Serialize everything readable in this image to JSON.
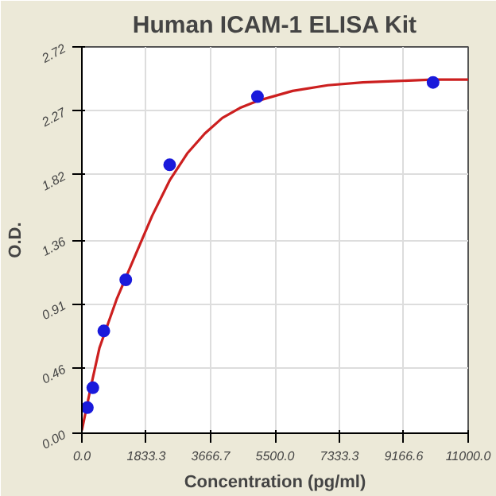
{
  "chart_data": {
    "type": "scatter",
    "title": "Human ICAM-1 ELISA Kit",
    "xlabel": "Concentration (pg/ml)",
    "ylabel": "O.D.",
    "xlim": [
      0,
      11000
    ],
    "ylim": [
      0,
      2.72
    ],
    "xticks": [
      {
        "value": 0,
        "label": "0.0"
      },
      {
        "value": 1833.3,
        "label": "1833.3"
      },
      {
        "value": 3666.7,
        "label": "3666.7"
      },
      {
        "value": 5500,
        "label": "5500.0"
      },
      {
        "value": 7333.3,
        "label": "7333.3"
      },
      {
        "value": 9166.6,
        "label": "9166.6"
      },
      {
        "value": 11000,
        "label": "11000.0"
      }
    ],
    "yticks": [
      {
        "value": 0,
        "label": "0.00"
      },
      0.46,
      0.91,
      1.36,
      1.82,
      2.27,
      2.72
    ],
    "grid": true,
    "marker": "circle",
    "series": [
      {
        "type": "line",
        "marker": "none",
        "color": "#cc1f1f",
        "x": [
          0,
          250,
          500,
          1000,
          1500,
          2000,
          2500,
          3000,
          3500,
          4000,
          4500,
          5000,
          6000,
          7000,
          8000,
          9000,
          10000,
          11000
        ],
        "values": [
          0.02,
          0.32,
          0.6,
          0.95,
          1.24,
          1.53,
          1.78,
          1.97,
          2.11,
          2.22,
          2.29,
          2.34,
          2.41,
          2.45,
          2.47,
          2.48,
          2.49,
          2.49
        ]
      },
      {
        "color": "#1a1adb",
        "x": [
          156,
          312,
          625,
          1250,
          2500,
          5000,
          10000
        ],
        "values": [
          0.18,
          0.32,
          0.72,
          1.08,
          1.89,
          2.37,
          2.47
        ]
      }
    ]
  }
}
